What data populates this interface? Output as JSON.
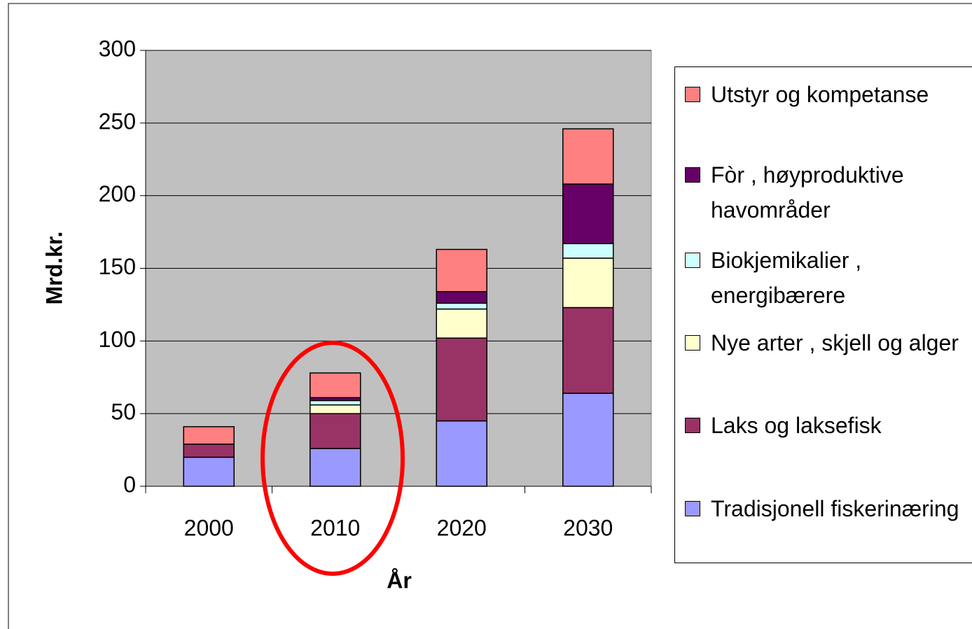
{
  "chart_data": {
    "type": "stacked_bar",
    "x_label": "År",
    "y_label": "Mrd.kr.",
    "categories": [
      "2000",
      "2010",
      "2020",
      "2030"
    ],
    "series": [
      {
        "name": "Tradisjonell fiskerinæring",
        "color": "#9999ff",
        "values": [
          20,
          26,
          45,
          64
        ]
      },
      {
        "name": "Laks og laksefisk",
        "color": "#993366",
        "values": [
          9,
          24,
          57,
          59
        ]
      },
      {
        "name": "Nye arter , skjell og alger",
        "color": "#ffffcc",
        "values": [
          0,
          6,
          20,
          34
        ]
      },
      {
        "name": "Biokjemikalier , energibærere",
        "color": "#ccffff",
        "values": [
          0,
          3,
          4,
          10
        ]
      },
      {
        "name": "Fòr , høyproduktive havområder",
        "color": "#660066",
        "values": [
          0,
          2,
          8,
          41
        ]
      },
      {
        "name": "Utstyr og kompetanse",
        "color": "#ff8080",
        "values": [
          12,
          17,
          29,
          38
        ]
      }
    ],
    "ylim": [
      0,
      300
    ],
    "yticks": [
      0,
      50,
      100,
      150,
      200,
      250,
      300
    ],
    "grid": true,
    "legend": "right",
    "plot_background": "#c0c0c0"
  }
}
